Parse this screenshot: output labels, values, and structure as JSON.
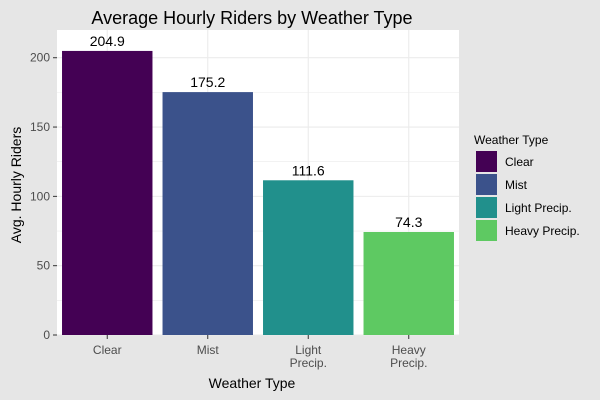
{
  "chart_data": {
    "type": "bar",
    "title": "Average Hourly Riders by Weather Type",
    "xlabel": "Weather Type",
    "ylabel": "Avg. Hourly Riders",
    "categories": [
      "Clear",
      "Mist",
      "Light\nPrecip.",
      "Heavy\nPrecip."
    ],
    "values": [
      204.9,
      175.2,
      111.6,
      74.3
    ],
    "data_labels": [
      "204.9",
      "175.2",
      "111.6",
      "74.3"
    ],
    "colors": [
      "#440154",
      "#3b528b",
      "#21908c",
      "#5ec962"
    ],
    "ylim": [
      0,
      220
    ],
    "yticks": [
      0,
      50,
      100,
      150,
      200
    ],
    "grid": true,
    "legend": {
      "title": "Weather Type",
      "position": "right",
      "entries": [
        "Clear",
        "Mist",
        "Light Precip.",
        "Heavy Precip."
      ]
    }
  },
  "theme": {
    "outer_background": "#e6e6e6",
    "panel_background": "#ffffff",
    "grid_color": "#ebebeb",
    "text_color": "#000000",
    "tick_text_color": "#4d4d4d"
  }
}
